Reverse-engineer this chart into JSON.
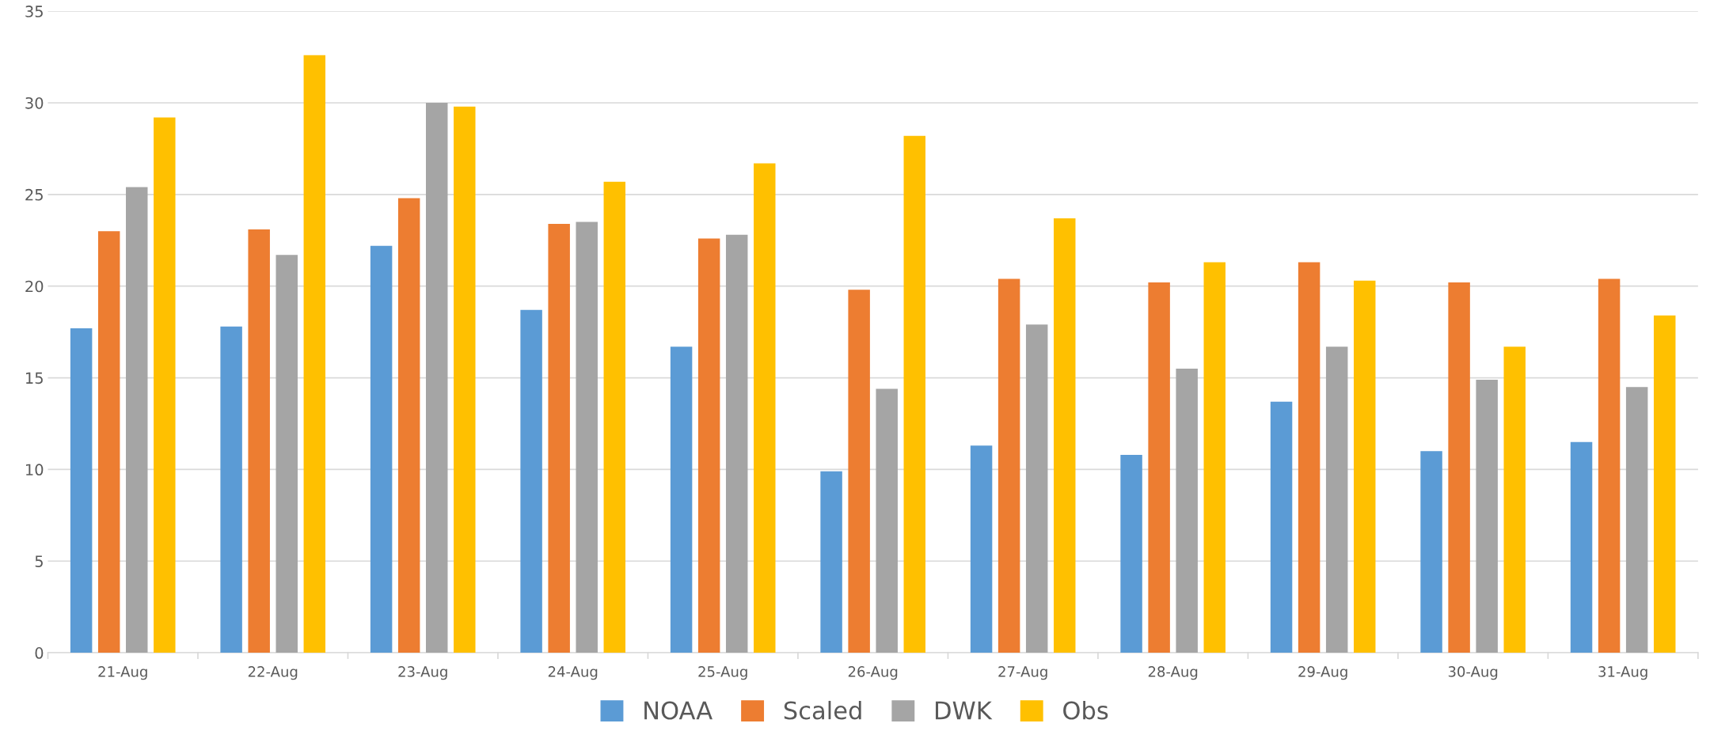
{
  "chart_data": {
    "type": "bar",
    "categories": [
      "21-Aug",
      "22-Aug",
      "23-Aug",
      "24-Aug",
      "25-Aug",
      "26-Aug",
      "27-Aug",
      "28-Aug",
      "29-Aug",
      "30-Aug",
      "31-Aug"
    ],
    "series": [
      {
        "name": "NOAA",
        "color": "#5b9bd5",
        "values": [
          17.7,
          17.8,
          22.2,
          18.7,
          16.7,
          9.9,
          11.3,
          10.8,
          13.7,
          11.0,
          11.5
        ]
      },
      {
        "name": "Scaled",
        "color": "#ed7d31",
        "values": [
          23.0,
          23.1,
          24.8,
          23.4,
          22.6,
          19.8,
          20.4,
          20.2,
          21.3,
          20.2,
          20.4
        ]
      },
      {
        "name": "DWK",
        "color": "#a5a5a5",
        "values": [
          25.4,
          21.7,
          30.0,
          23.5,
          22.8,
          14.4,
          17.9,
          15.5,
          16.7,
          14.9,
          14.5
        ]
      },
      {
        "name": "Obs",
        "color": "#ffc000",
        "values": [
          29.2,
          32.6,
          29.8,
          25.7,
          26.7,
          28.2,
          23.7,
          21.3,
          20.3,
          16.7,
          18.4
        ]
      }
    ],
    "ylim": [
      0,
      35
    ],
    "yticks": [
      0,
      5,
      10,
      15,
      20,
      25,
      30,
      35
    ],
    "grid": "y",
    "legend": "bottom"
  }
}
